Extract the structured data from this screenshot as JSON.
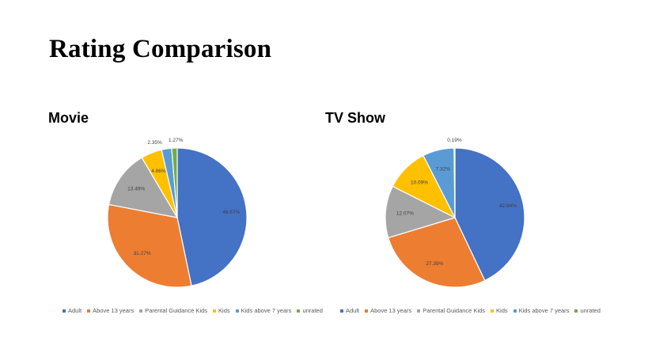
{
  "slide": {
    "title": "Rating Comparison"
  },
  "chart_data": [
    {
      "type": "pie",
      "title": "Movie",
      "categories": [
        "Adult",
        "Above 13 years",
        "Parental Guidance Kids",
        "Kids",
        "Kids above 7 years",
        "unrated"
      ],
      "values": [
        46.67,
        31.27,
        13.49,
        4.86,
        2.35,
        1.27
      ],
      "labels": [
        "46.67%",
        "31.27%",
        "13.49%",
        "4.86%",
        "2.35%",
        "1.27%"
      ],
      "colors": [
        "#4472C4",
        "#ED7D31",
        "#A5A5A5",
        "#FFC000",
        "#5B9BD5",
        "#70AD47"
      ],
      "legend": "bottom"
    },
    {
      "type": "pie",
      "title": "TV Show",
      "categories": [
        "Adult",
        "Above 13 years",
        "Parental Guidance Kids",
        "Kids",
        "Kids above 7 years",
        "unrated"
      ],
      "values": [
        42.94,
        27.39,
        12.07,
        10.09,
        7.32,
        0.19
      ],
      "labels": [
        "42.94%",
        "27.39%",
        "12.07%",
        "10.09%",
        "7.32%",
        "0.19%"
      ],
      "colors": [
        "#4472C4",
        "#ED7D31",
        "#A5A5A5",
        "#FFC000",
        "#5B9BD5",
        "#70AD47"
      ],
      "legend": "bottom"
    }
  ]
}
